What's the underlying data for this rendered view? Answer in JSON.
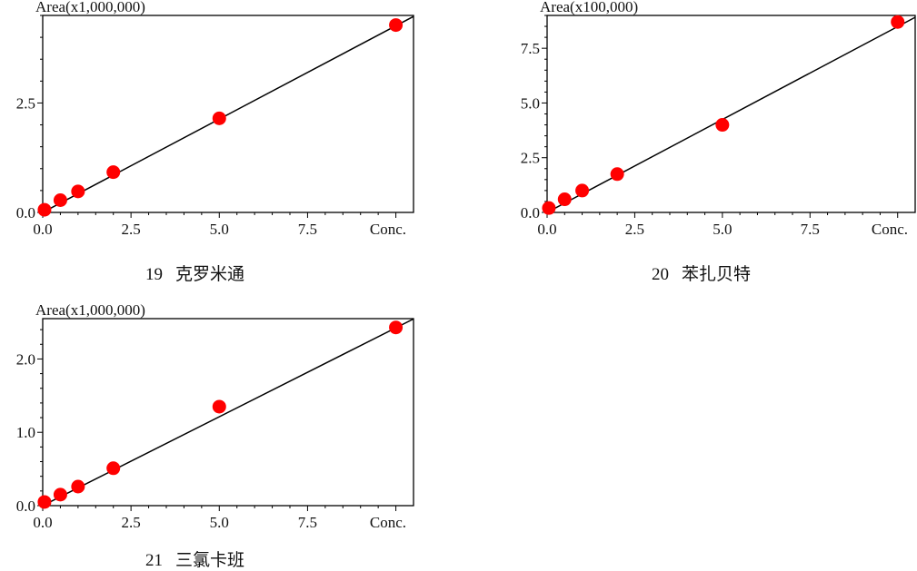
{
  "chart_data": [
    {
      "type": "scatter",
      "ylabel": "Area(x1,000,000)",
      "xlabel": "Conc.",
      "xlim": [
        0,
        10.5
      ],
      "ylim": [
        0,
        4.5
      ],
      "xticks": [
        "0.0",
        "2.5",
        "5.0",
        "7.5"
      ],
      "yticks": [
        "0.0",
        "2.5"
      ],
      "ytick_values": [
        0,
        2.5
      ],
      "x": [
        0.05,
        0.5,
        1.0,
        2.0,
        5.0,
        10.0
      ],
      "y": [
        0.06,
        0.28,
        0.48,
        0.92,
        2.15,
        4.28
      ],
      "fit_line": [
        [
          0,
          0.0
        ],
        [
          10.6,
          4.52
        ]
      ],
      "caption_number": "19",
      "caption_name": "克罗米通"
    },
    {
      "type": "scatter",
      "ylabel": "Area(x100,000)",
      "xlabel": "Conc.",
      "xlim": [
        0,
        10.5
      ],
      "ylim": [
        0,
        9.0
      ],
      "xticks": [
        "0.0",
        "2.5",
        "5.0",
        "7.5"
      ],
      "yticks": [
        "0.0",
        "2.5",
        "5.0",
        "7.5"
      ],
      "ytick_values": [
        0,
        2.5,
        5.0,
        7.5
      ],
      "x": [
        0.05,
        0.5,
        1.0,
        2.0,
        5.0,
        10.0
      ],
      "y": [
        0.2,
        0.6,
        1.0,
        1.75,
        4.0,
        8.7
      ],
      "fit_line": [
        [
          0,
          0.0
        ],
        [
          10.6,
          9.0
        ]
      ],
      "caption_number": "20",
      "caption_name": "苯扎贝特"
    },
    {
      "type": "scatter",
      "ylabel": "Area(x1,000,000)",
      "xlabel": "Conc.",
      "xlim": [
        0,
        10.5
      ],
      "ylim": [
        0,
        2.55
      ],
      "xticks": [
        "0.0",
        "2.5",
        "5.0",
        "7.5"
      ],
      "yticks": [
        "0.0",
        "1.0",
        "2.0"
      ],
      "ytick_values": [
        0,
        1.0,
        2.0
      ],
      "x": [
        0.05,
        0.5,
        1.0,
        2.0,
        5.0,
        10.0
      ],
      "y": [
        0.05,
        0.15,
        0.26,
        0.51,
        1.35,
        2.43
      ],
      "fit_line": [
        [
          0,
          0.0
        ],
        [
          10.6,
          2.57
        ]
      ],
      "caption_number": "21",
      "caption_name": "三氯卡班"
    }
  ],
  "colors": {
    "marker": "#ff0000",
    "line": "#000000",
    "axis": "#000000"
  }
}
